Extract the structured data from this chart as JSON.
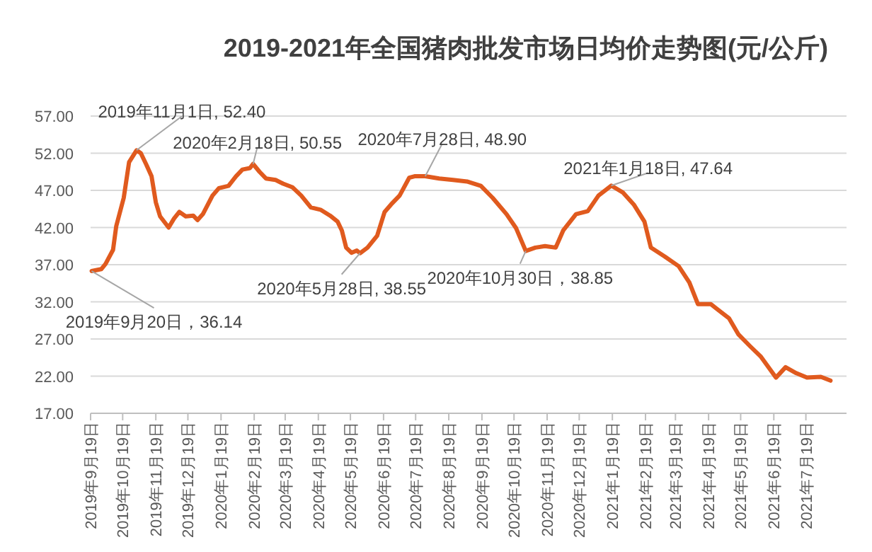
{
  "chart_data": {
    "type": "line",
    "title": "2019-2021年全国猪肉批发市场日均价走势图(元/公斤)",
    "grid": "y",
    "x": [
      "2019-09-20",
      "2019-09-29",
      "2019-10-03",
      "2019-10-10",
      "2019-10-13",
      "2019-10-20",
      "2019-10-25",
      "2019-11-01",
      "2019-11-05",
      "2019-11-10",
      "2019-11-15",
      "2019-11-19",
      "2019-11-23",
      "2019-12-01",
      "2019-12-06",
      "2019-12-11",
      "2019-12-17",
      "2019-12-24",
      "2019-12-28",
      "2020-01-02",
      "2020-01-11",
      "2020-01-17",
      "2020-01-26",
      "2020-02-02",
      "2020-02-08",
      "2020-02-15",
      "2020-02-18",
      "2020-02-24",
      "2020-03-01",
      "2020-03-10",
      "2020-03-17",
      "2020-03-26",
      "2020-04-03",
      "2020-04-12",
      "2020-04-21",
      "2020-04-30",
      "2020-05-07",
      "2020-05-11",
      "2020-05-15",
      "2020-05-20",
      "2020-05-25",
      "2020-05-28",
      "2020-06-04",
      "2020-06-13",
      "2020-06-20",
      "2020-06-26",
      "2020-07-04",
      "2020-07-13",
      "2020-07-18",
      "2020-07-28",
      "2020-08-10",
      "2020-08-23",
      "2020-09-05",
      "2020-09-18",
      "2020-09-29",
      "2020-10-12",
      "2020-10-21",
      "2020-10-30",
      "2020-11-08",
      "2020-11-17",
      "2020-11-27",
      "2020-12-04",
      "2020-12-16",
      "2020-12-27",
      "2021-01-06",
      "2021-01-18",
      "2021-01-29",
      "2021-02-08",
      "2021-02-18",
      "2021-02-24",
      "2021-03-09",
      "2021-03-22",
      "2021-04-01",
      "2021-04-09",
      "2021-04-21",
      "2021-04-29",
      "2021-05-08",
      "2021-05-17",
      "2021-05-28",
      "2021-06-07",
      "2021-06-21",
      "2021-06-30",
      "2021-07-10",
      "2021-07-20",
      "2021-08-02",
      "2021-08-11"
    ],
    "series": [
      {
        "color": "#e05a1e",
        "values": [
          36.14,
          36.4,
          37.1,
          39.0,
          42.2,
          46.0,
          50.8,
          52.4,
          52.0,
          50.5,
          48.9,
          45.4,
          43.5,
          42.0,
          43.2,
          44.1,
          43.5,
          43.6,
          43.0,
          43.8,
          46.3,
          47.3,
          47.6,
          48.9,
          49.8,
          50.0,
          50.55,
          49.5,
          48.6,
          48.4,
          47.9,
          47.4,
          46.3,
          44.7,
          44.4,
          43.6,
          42.8,
          41.6,
          39.3,
          38.6,
          38.9,
          38.55,
          39.3,
          40.9,
          44.1,
          45.1,
          46.3,
          48.7,
          48.9,
          48.9,
          48.6,
          48.4,
          48.2,
          47.6,
          46.0,
          43.8,
          41.9,
          38.85,
          39.3,
          39.5,
          39.3,
          41.6,
          43.8,
          44.2,
          46.3,
          47.64,
          46.7,
          45.1,
          42.8,
          39.3,
          38.1,
          36.8,
          34.6,
          31.7,
          31.7,
          30.8,
          29.8,
          27.6,
          26.0,
          24.6,
          21.8,
          23.2,
          22.4,
          21.8,
          21.9,
          21.4
        ]
      }
    ],
    "xlim": [
      "2019-09-19",
      "2021-08-26"
    ],
    "xticks": [
      {
        "value": "2019-09-19",
        "label": "2019年9月19日"
      },
      {
        "value": "2019-10-19",
        "label": "2019年10月19日"
      },
      {
        "value": "2019-11-19",
        "label": "2019年11月19日"
      },
      {
        "value": "2019-12-19",
        "label": "2019年12月19日"
      },
      {
        "value": "2020-01-19",
        "label": "2020年1月19日"
      },
      {
        "value": "2020-02-19",
        "label": "2020年2月19日"
      },
      {
        "value": "2020-03-19",
        "label": "2020年3月19日"
      },
      {
        "value": "2020-04-19",
        "label": "2020年4月19日"
      },
      {
        "value": "2020-05-19",
        "label": "2020年5月19日"
      },
      {
        "value": "2020-06-19",
        "label": "2020年6月19日"
      },
      {
        "value": "2020-07-19",
        "label": "2020年7月19日"
      },
      {
        "value": "2020-08-19",
        "label": "2020年8月19日"
      },
      {
        "value": "2020-09-19",
        "label": "2020年9月19日"
      },
      {
        "value": "2020-10-19",
        "label": "2020年10月19日"
      },
      {
        "value": "2020-11-19",
        "label": "2020年11月19日"
      },
      {
        "value": "2020-12-19",
        "label": "2020年12月19日"
      },
      {
        "value": "2021-01-19",
        "label": "2021年1月19日"
      },
      {
        "value": "2021-02-19",
        "label": "2021年2月19日"
      },
      {
        "value": "2021-03-19",
        "label": "2021年3月19日"
      },
      {
        "value": "2021-04-19",
        "label": "2021年4月19日"
      },
      {
        "value": "2021-05-19",
        "label": "2021年5月19日"
      },
      {
        "value": "2021-06-19",
        "label": "2021年6月19日"
      },
      {
        "value": "2021-07-19",
        "label": "2021年7月19日"
      }
    ],
    "ylim": [
      17,
      57
    ],
    "yticks": [
      {
        "value": 17,
        "label": "17.00"
      },
      {
        "value": 22,
        "label": "22.00"
      },
      {
        "value": 27,
        "label": "27.00"
      },
      {
        "value": 32,
        "label": "32.00"
      },
      {
        "value": 37,
        "label": "37.00"
      },
      {
        "value": 42,
        "label": "42.00"
      },
      {
        "value": 47,
        "label": "47.00"
      },
      {
        "value": 52,
        "label": "52.00"
      },
      {
        "value": 57,
        "label": "57.00"
      }
    ],
    "annotations": [
      {
        "text": "2019年9月20日，36.14",
        "x": "2019-09-20",
        "y": 36.14
      },
      {
        "text": "2019年11月1日, 52.40",
        "x": "2019-11-01",
        "y": 52.4
      },
      {
        "text": "2020年2月18日, 50.55",
        "x": "2020-02-18",
        "y": 50.55
      },
      {
        "text": "2020年5月28日, 38.55",
        "x": "2020-05-28",
        "y": 38.55
      },
      {
        "text": "2020年7月28日, 48.90",
        "x": "2020-07-28",
        "y": 48.9
      },
      {
        "text": "2020年10月30日，38.85",
        "x": "2020-10-30",
        "y": 38.85
      },
      {
        "text": "2021年1月18日, 47.64",
        "x": "2021-01-18",
        "y": 47.64
      }
    ]
  }
}
